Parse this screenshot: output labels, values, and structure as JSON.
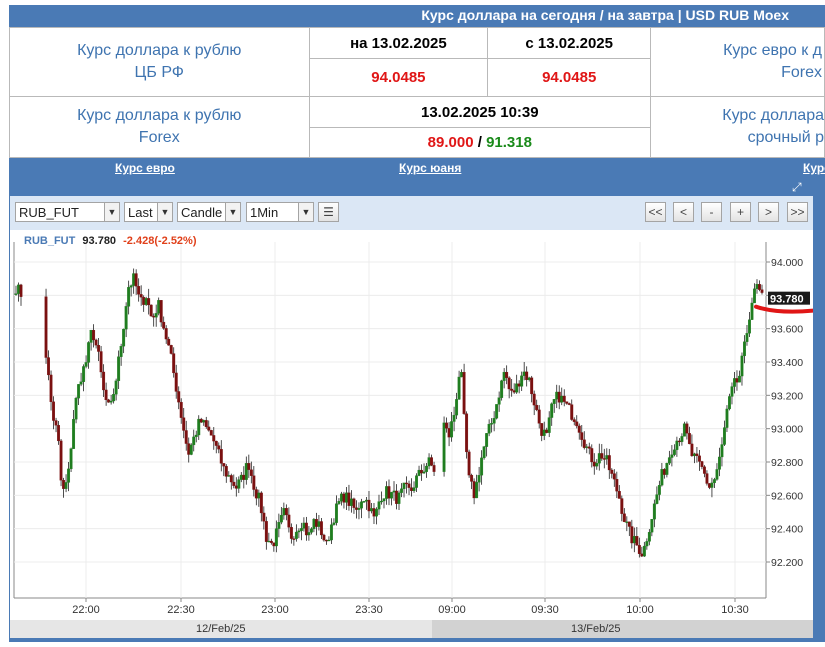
{
  "header": {
    "title": "Курс доллара на сегодня / на завтра | USD RUB Moex"
  },
  "rates": {
    "cbr": {
      "label_line1": "Курс доллара к рублю",
      "label_line2": "ЦБ РФ",
      "col1_header": "на 13.02.2025",
      "col2_header": "с 13.02.2025",
      "col1_value": "94.0485",
      "col2_value": "94.0485"
    },
    "forex": {
      "label_line1": "Курс доллара к рублю",
      "label_line2": "Forex",
      "datetime": "13.02.2025 10:39",
      "bid": "89.000",
      "separator": " / ",
      "ask": "91.318"
    },
    "euro_forex": {
      "label_line1": "Курс евро к д",
      "label_line2": "Forex"
    },
    "futures": {
      "label_line1": "Курс доллара",
      "label_line2": "срочный р"
    }
  },
  "tabs": [
    {
      "label": "Курс евро"
    },
    {
      "label": "Курс юаня"
    },
    {
      "label": "Курс"
    }
  ],
  "toolbar": {
    "symbol": "RUB_FUT",
    "price_type": "Last",
    "chart_type": "Candle",
    "interval": "1Min",
    "buttons": [
      "<<",
      "<",
      "-",
      "+",
      ">",
      ">>"
    ]
  },
  "legend": {
    "symbol": "RUB_FUT",
    "price": "93.780",
    "change": "-2.428(-2.52%)"
  },
  "current_price_label": "93.780",
  "date_labels": [
    "12/Feb/25",
    "13/Feb/25"
  ],
  "colors": {
    "up": "#1f7d1f",
    "down": "#7a1010",
    "accent": "#4a7ab5",
    "highlight": "#e01616"
  },
  "chart_data": {
    "type": "candlestick",
    "title": "",
    "symbol": "RUB_FUT",
    "yticks": [
      94.0,
      93.8,
      93.6,
      93.4,
      93.2,
      93.0,
      92.8,
      92.6,
      92.4,
      92.2
    ],
    "ytick_labels": [
      "94.000",
      "93.800",
      "93.600",
      "93.400",
      "93.200",
      "93.000",
      "92.800",
      "92.600",
      "92.400",
      "92.200"
    ],
    "xtick_labels": [
      "22:00",
      "22:30",
      "23:00",
      "23:30",
      "09:00",
      "09:30",
      "10:00",
      "10:30"
    ],
    "ylim": [
      92.0,
      94.2
    ],
    "last_price": 93.78,
    "close_path": [
      [
        0,
        93.85
      ],
      [
        6,
        93.8
      ],
      [
        14,
        93.7
      ],
      [
        22,
        93.65
      ],
      [
        30,
        93.45
      ],
      [
        36,
        93.1
      ],
      [
        42,
        92.95
      ],
      [
        46,
        92.6
      ],
      [
        52,
        92.7
      ],
      [
        58,
        93.1
      ],
      [
        64,
        93.3
      ],
      [
        70,
        93.4
      ],
      [
        76,
        93.6
      ],
      [
        82,
        93.45
      ],
      [
        88,
        93.2
      ],
      [
        94,
        93.1
      ],
      [
        100,
        93.3
      ],
      [
        106,
        93.55
      ],
      [
        112,
        93.85
      ],
      [
        118,
        93.9
      ],
      [
        124,
        93.75
      ],
      [
        130,
        93.8
      ],
      [
        136,
        93.65
      ],
      [
        142,
        93.75
      ],
      [
        148,
        93.6
      ],
      [
        154,
        93.45
      ],
      [
        160,
        93.25
      ],
      [
        166,
        93.05
      ],
      [
        172,
        92.85
      ],
      [
        178,
        92.95
      ],
      [
        184,
        93.05
      ],
      [
        190,
        93.0
      ],
      [
        196,
        92.95
      ],
      [
        202,
        92.85
      ],
      [
        208,
        92.75
      ],
      [
        214,
        92.7
      ],
      [
        220,
        92.65
      ],
      [
        226,
        92.7
      ],
      [
        232,
        92.8
      ],
      [
        238,
        92.65
      ],
      [
        244,
        92.55
      ],
      [
        250,
        92.35
      ],
      [
        256,
        92.3
      ],
      [
        262,
        92.4
      ],
      [
        268,
        92.5
      ],
      [
        274,
        92.35
      ],
      [
        280,
        92.4
      ],
      [
        286,
        92.45
      ],
      [
        292,
        92.35
      ],
      [
        298,
        92.45
      ],
      [
        304,
        92.4
      ],
      [
        310,
        92.3
      ],
      [
        316,
        92.45
      ],
      [
        322,
        92.55
      ],
      [
        328,
        92.6
      ],
      [
        334,
        92.55
      ],
      [
        340,
        92.5
      ],
      [
        346,
        92.6
      ],
      [
        352,
        92.55
      ],
      [
        358,
        92.45
      ],
      [
        364,
        92.6
      ],
      [
        370,
        92.62
      ],
      [
        376,
        92.6
      ],
      [
        382,
        92.58
      ],
      [
        388,
        92.64
      ],
      [
        394,
        92.62
      ],
      [
        400,
        92.7
      ],
      [
        406,
        92.75
      ],
      [
        412,
        92.8
      ],
      [
        418,
        92.75
      ],
      [
        426,
        93.05
      ],
      [
        432,
        92.95
      ],
      [
        438,
        93.1
      ],
      [
        444,
        93.4
      ],
      [
        448,
        93.0
      ],
      [
        452,
        92.7
      ],
      [
        458,
        92.6
      ],
      [
        464,
        92.8
      ],
      [
        470,
        92.95
      ],
      [
        476,
        93.05
      ],
      [
        482,
        93.2
      ],
      [
        488,
        93.35
      ],
      [
        494,
        93.2
      ],
      [
        500,
        93.25
      ],
      [
        506,
        93.35
      ],
      [
        512,
        93.3
      ],
      [
        518,
        93.15
      ],
      [
        524,
        93.0
      ],
      [
        530,
        92.95
      ],
      [
        536,
        93.15
      ],
      [
        542,
        93.2
      ],
      [
        548,
        93.15
      ],
      [
        554,
        93.1
      ],
      [
        560,
        93.05
      ],
      [
        566,
        92.95
      ],
      [
        572,
        92.85
      ],
      [
        578,
        92.8
      ],
      [
        584,
        92.85
      ],
      [
        590,
        92.8
      ],
      [
        596,
        92.7
      ],
      [
        602,
        92.6
      ],
      [
        608,
        92.45
      ],
      [
        614,
        92.35
      ],
      [
        620,
        92.3
      ],
      [
        626,
        92.25
      ],
      [
        632,
        92.4
      ],
      [
        638,
        92.55
      ],
      [
        644,
        92.7
      ],
      [
        650,
        92.8
      ],
      [
        656,
        92.9
      ],
      [
        662,
        92.95
      ],
      [
        668,
        93.0
      ],
      [
        674,
        92.85
      ],
      [
        680,
        92.8
      ],
      [
        686,
        92.75
      ],
      [
        692,
        92.65
      ],
      [
        698,
        92.7
      ],
      [
        704,
        92.85
      ],
      [
        710,
        93.1
      ],
      [
        716,
        93.25
      ],
      [
        722,
        93.3
      ],
      [
        728,
        93.5
      ],
      [
        734,
        93.75
      ],
      [
        740,
        93.85
      ],
      [
        745,
        93.78
      ]
    ]
  }
}
